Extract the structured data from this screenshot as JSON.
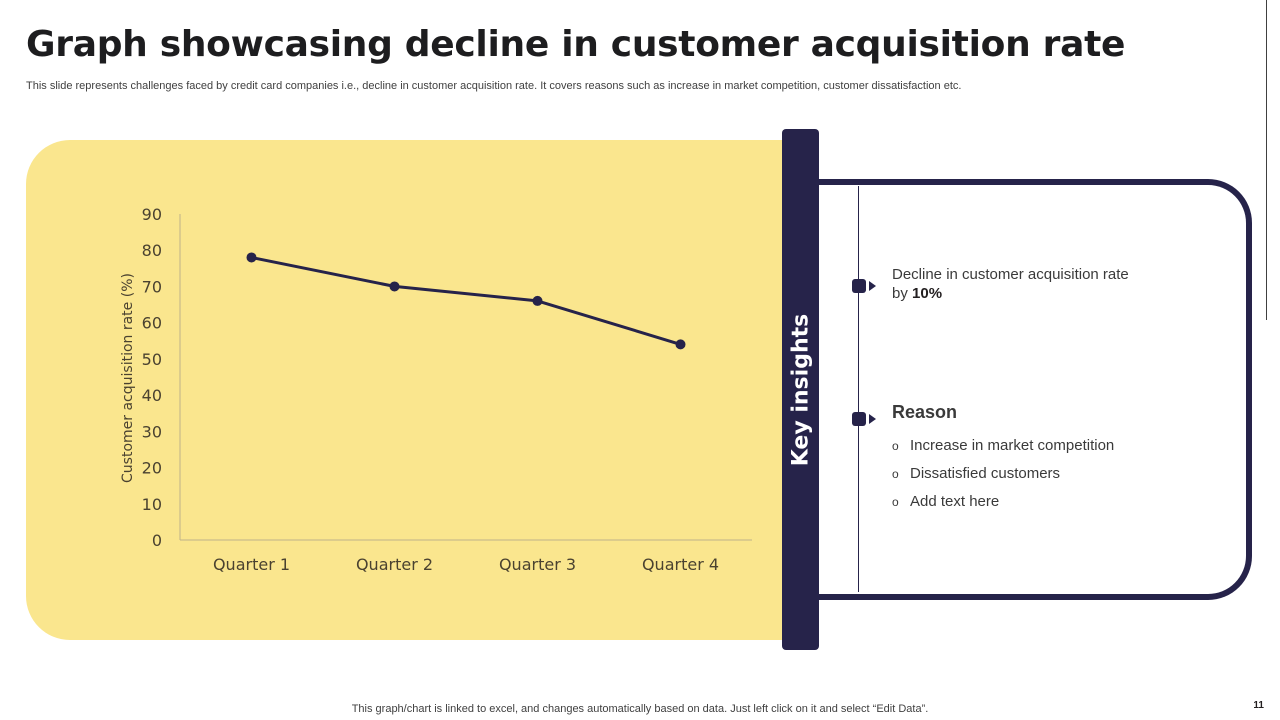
{
  "slide": {
    "title": "Graph showcasing decline in customer acquisition rate",
    "subtitle": "This slide represents challenges faced by credit card companies i.e., decline in customer acquisition rate. It covers reasons such as increase in market competition, customer dissatisfaction etc.",
    "footer_note": "This graph/chart is linked to excel, and changes automatically based on data. Just left click on it and select “Edit Data”.",
    "page_number": "11"
  },
  "insights": {
    "heading": "Key insights",
    "decline_text": "Decline in customer acquisition rate by ",
    "decline_value": "10%",
    "reason_title": "Reason",
    "bullet_glyph": "o",
    "reasons": [
      "Increase  in market competition",
      "Dissatisfied customers",
      "Add text here"
    ]
  },
  "colors": {
    "panel_yellow": "#fae68e",
    "navy": "#26234a",
    "axis_text": "#4a4230"
  },
  "chart_data": {
    "type": "line",
    "title": "",
    "xlabel": "",
    "ylabel": "Customer acquisition rate (%)",
    "categories": [
      "Quarter 1",
      "Quarter 2",
      "Quarter 3",
      "Quarter 4"
    ],
    "series": [
      {
        "name": "Customer acquisition rate",
        "values": [
          78,
          70,
          66,
          54
        ]
      }
    ],
    "ylim": [
      0,
      90
    ],
    "yticks": [
      0,
      10,
      20,
      30,
      40,
      50,
      60,
      70,
      80,
      90
    ],
    "grid": false,
    "legend": "none"
  }
}
